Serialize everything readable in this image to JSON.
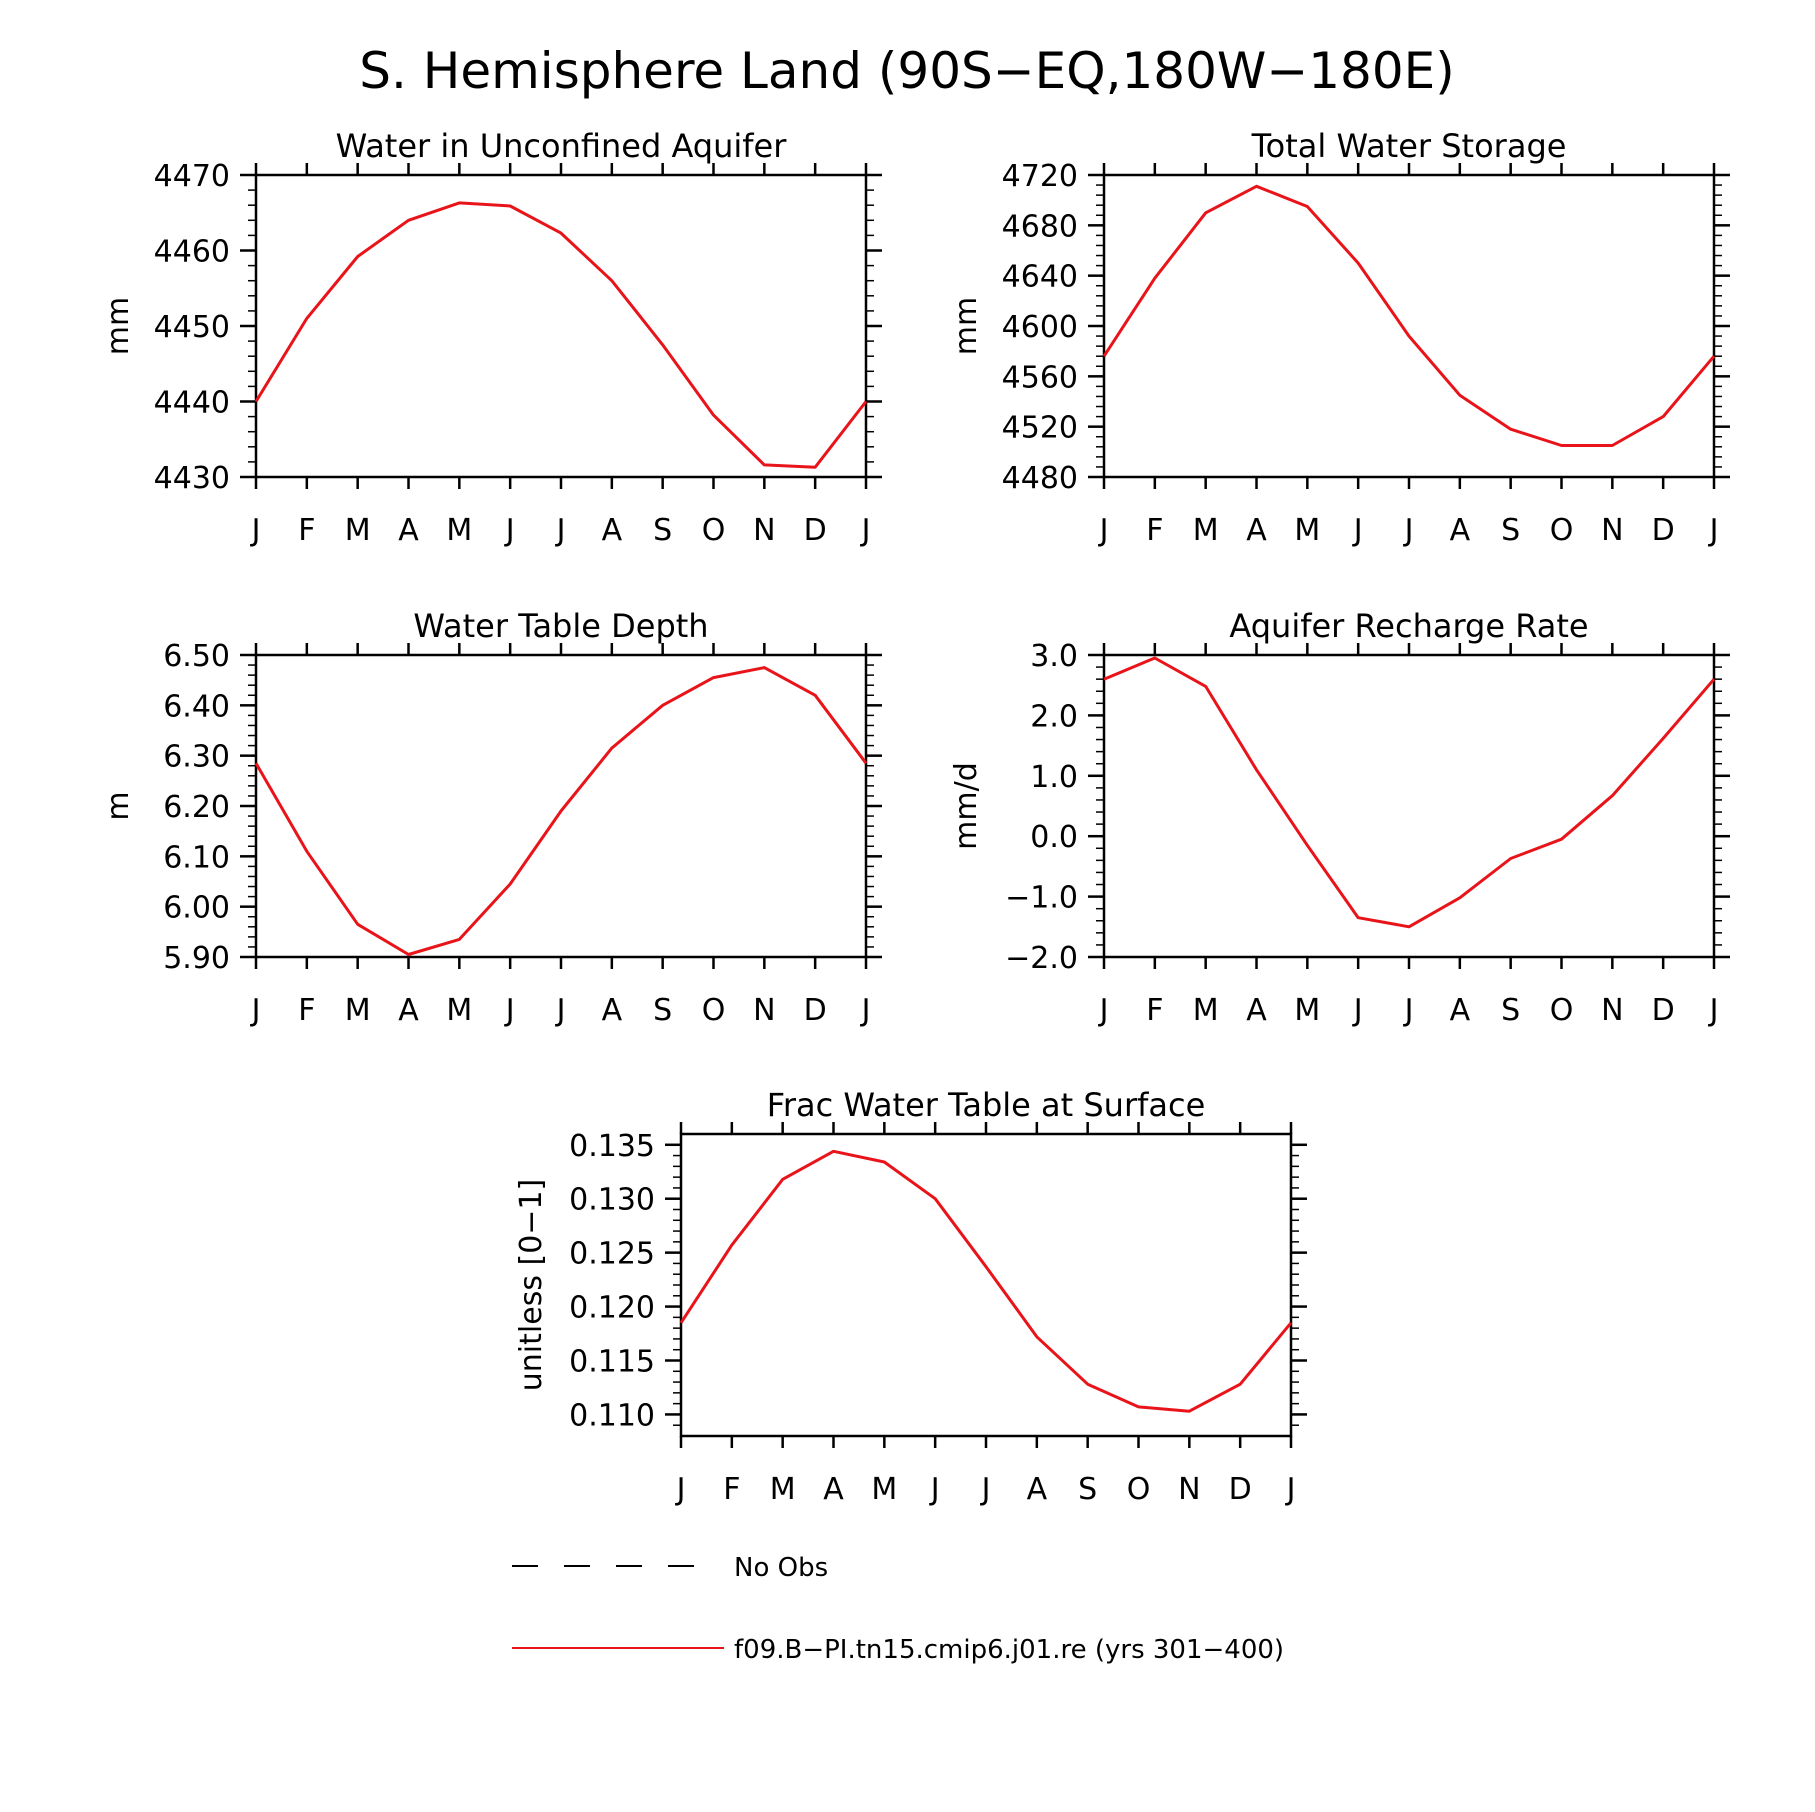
{
  "title": "S. Hemisphere Land (90S−EQ,180W−180E)",
  "legend": [
    {
      "label": "No Obs",
      "style": "dashed",
      "color": "#000000"
    },
    {
      "label": "f09.B−PI.tn15.cmip6.j01.re (yrs 301−400)",
      "style": "solid",
      "color": "#e8141a"
    }
  ],
  "colors": {
    "series": "#e8141a",
    "axes": "#000000"
  },
  "chart_data": [
    {
      "type": "line",
      "title": "Water in Unconfined Aquifer",
      "ylabel": "mm",
      "x": [
        "J",
        "F",
        "M",
        "A",
        "M",
        "J",
        "J",
        "A",
        "S",
        "O",
        "N",
        "D",
        "J"
      ],
      "ylim": [
        4430,
        4470
      ],
      "yticks": [
        4430,
        4440,
        4450,
        4460,
        4470
      ],
      "ytick_labels": [
        "4430",
        "4440",
        "4450",
        "4460",
        "4470"
      ],
      "series": [
        {
          "values": [
            4440,
            4451,
            4459.2,
            4464,
            4466.3,
            4465.9,
            4462.3,
            4456,
            4447.5,
            4438.2,
            4431.6,
            4431.3,
            4440
          ]
        }
      ]
    },
    {
      "type": "line",
      "title": "Total Water Storage",
      "ylabel": "mm",
      "x": [
        "J",
        "F",
        "M",
        "A",
        "M",
        "J",
        "J",
        "A",
        "S",
        "O",
        "N",
        "D",
        "J"
      ],
      "ylim": [
        4480,
        4720
      ],
      "yticks": [
        4480,
        4520,
        4560,
        4600,
        4640,
        4680,
        4720
      ],
      "ytick_labels": [
        "4480",
        "4520",
        "4560",
        "4600",
        "4640",
        "4680",
        "4720"
      ],
      "series": [
        {
          "values": [
            4576,
            4638,
            4690,
            4711,
            4695,
            4650,
            4592,
            4545,
            4518,
            4505,
            4505,
            4528,
            4576
          ]
        }
      ]
    },
    {
      "type": "line",
      "title": "Water Table Depth",
      "ylabel": "m",
      "x": [
        "J",
        "F",
        "M",
        "A",
        "M",
        "J",
        "J",
        "A",
        "S",
        "O",
        "N",
        "D",
        "J"
      ],
      "ylim": [
        5.9,
        6.5
      ],
      "yticks": [
        5.9,
        6.0,
        6.1,
        6.2,
        6.3,
        6.4,
        6.5
      ],
      "ytick_labels": [
        "5.90",
        "6.00",
        "6.10",
        "6.20",
        "6.30",
        "6.40",
        "6.50"
      ],
      "series": [
        {
          "values": [
            6.285,
            6.11,
            5.965,
            5.905,
            5.935,
            6.045,
            6.19,
            6.315,
            6.4,
            6.455,
            6.475,
            6.42,
            6.285
          ]
        }
      ]
    },
    {
      "type": "line",
      "title": "Aquifer Recharge Rate",
      "ylabel": "mm/d",
      "x": [
        "J",
        "F",
        "M",
        "A",
        "M",
        "J",
        "J",
        "A",
        "S",
        "O",
        "N",
        "D",
        "J"
      ],
      "ylim": [
        -2.0,
        3.0
      ],
      "yticks": [
        -2.0,
        -1.0,
        0.0,
        1.0,
        2.0,
        3.0
      ],
      "ytick_labels": [
        "−2.0",
        "−1.0",
        "0.0",
        "1.0",
        "2.0",
        "3.0"
      ],
      "series": [
        {
          "values": [
            2.6,
            2.95,
            2.48,
            1.1,
            -0.15,
            -1.35,
            -1.5,
            -1.02,
            -0.37,
            -0.05,
            0.67,
            1.62,
            2.6
          ]
        }
      ]
    },
    {
      "type": "line",
      "title": "Frac Water Table at Surface",
      "ylabel": "unitless [0−1]",
      "x": [
        "J",
        "F",
        "M",
        "A",
        "M",
        "J",
        "J",
        "A",
        "S",
        "O",
        "N",
        "D",
        "J"
      ],
      "ylim": [
        0.108,
        0.136
      ],
      "yticks": [
        0.11,
        0.115,
        0.12,
        0.125,
        0.13,
        0.135
      ],
      "ytick_labels": [
        "0.110",
        "0.115",
        "0.120",
        "0.125",
        "0.130",
        "0.135"
      ],
      "series": [
        {
          "values": [
            0.1185,
            0.1257,
            0.1318,
            0.1344,
            0.1334,
            0.13,
            0.1237,
            0.1172,
            0.1128,
            0.1107,
            0.1103,
            0.1128,
            0.1185
          ]
        }
      ]
    }
  ]
}
